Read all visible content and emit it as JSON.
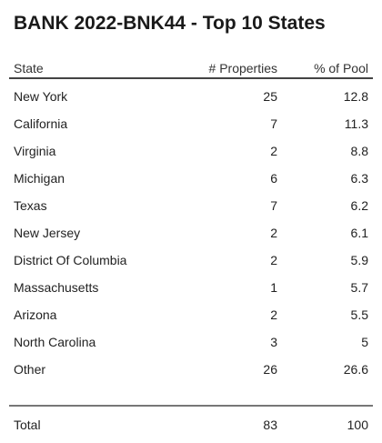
{
  "chart_data": {
    "type": "table",
    "title": "BANK 2022-BNK44 - Top 10 States",
    "columns": [
      "State",
      "# Properties",
      "% of Pool"
    ],
    "rows": [
      {
        "state": "New York",
        "properties": "25",
        "pool": "12.8"
      },
      {
        "state": "California",
        "properties": "7",
        "pool": "11.3"
      },
      {
        "state": "Virginia",
        "properties": "2",
        "pool": "8.8"
      },
      {
        "state": "Michigan",
        "properties": "6",
        "pool": "6.3"
      },
      {
        "state": "Texas",
        "properties": "7",
        "pool": "6.2"
      },
      {
        "state": "New Jersey",
        "properties": "2",
        "pool": "6.1"
      },
      {
        "state": "District Of Columbia",
        "properties": "2",
        "pool": "5.9"
      },
      {
        "state": "Massachusetts",
        "properties": "1",
        "pool": "5.7"
      },
      {
        "state": "Arizona",
        "properties": "2",
        "pool": "5.5"
      },
      {
        "state": "North Carolina",
        "properties": "3",
        "pool": "5"
      },
      {
        "state": "Other",
        "properties": "26",
        "pool": "26.6"
      }
    ],
    "total": {
      "label": "Total",
      "properties": "83",
      "pool": "100"
    }
  }
}
